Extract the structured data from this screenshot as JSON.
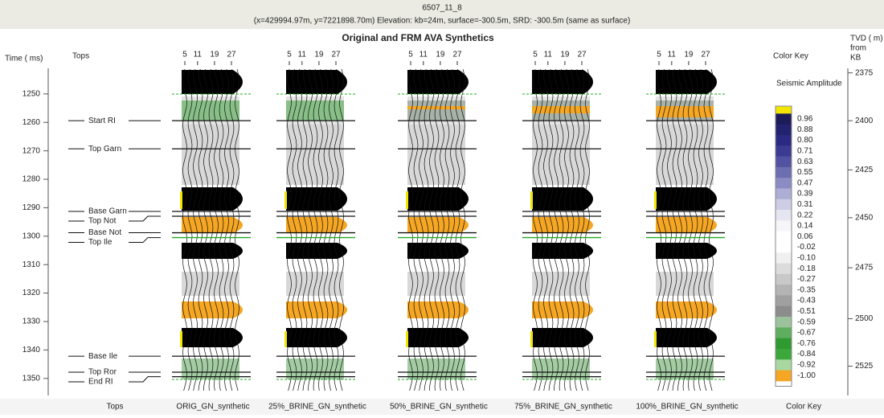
{
  "header": {
    "well": "6507_11_8",
    "location": "(x=429994.97m, y=7221898.70m) Elevation: kb=24m, surface=-300.5m, SRD: -300.5m (same as surface)"
  },
  "title": "Original and FRM AVA Synthetics",
  "time_axis": {
    "label": "Time ( ms)",
    "lim": [
      1241,
      1356
    ],
    "ticks": [
      1250,
      1260,
      1270,
      1280,
      1290,
      1300,
      1310,
      1320,
      1330,
      1340,
      1350
    ]
  },
  "tops": {
    "label": "Tops",
    "footer": "Tops",
    "items": [
      {
        "name": "Start RI",
        "time": 1259.4
      },
      {
        "name": "Top Garn",
        "time": 1269.3
      },
      {
        "name": "Base Garn",
        "time": 1291.3
      },
      {
        "name": "Top Not",
        "time": 1293.0
      },
      {
        "name": "Base Not",
        "time": 1298.8
      },
      {
        "name": "Top Ile",
        "time": 1300.5
      },
      {
        "name": "Base Ile",
        "time": 1342.2
      },
      {
        "name": "Top Ror",
        "time": 1347.8
      },
      {
        "name": "End RI",
        "time": 1349.4
      }
    ]
  },
  "offsets": [
    5,
    11,
    19,
    27
  ],
  "panels": [
    "ORIG_GN_synthetic",
    "25%_BRINE_GN_synthetic",
    "50%_BRINE_GN_synthetic",
    "75%_BRINE_GN_synthetic",
    "100%_BRINE_GN_synthetic"
  ],
  "color_key": {
    "label": "Color Key",
    "footer": "Color Key",
    "title": "Seismic Amplitude",
    "top_color": "#f2e600",
    "labels": [
      "0.96",
      "0.88",
      "0.80",
      "0.71",
      "0.63",
      "0.55",
      "0.47",
      "0.39",
      "0.31",
      "0.22",
      "0.14",
      "0.06",
      "-0.02",
      "-0.10",
      "-0.18",
      "-0.27",
      "-0.35",
      "-0.43",
      "-0.51",
      "-0.59",
      "-0.67",
      "-0.76",
      "-0.84",
      "-0.92",
      "-1.00"
    ],
    "colors": [
      "#1c1c5a",
      "#22226e",
      "#2a2a82",
      "#3b3b92",
      "#5252a2",
      "#6d6db2",
      "#8c8cc4",
      "#adadd5",
      "#cdcde6",
      "#e6e6f2",
      "#f6f6f8",
      "#ffffff",
      "#ffffff",
      "#f0f0f0",
      "#dcdcdc",
      "#c8c8c8",
      "#b4b4b4",
      "#a0a0a0",
      "#8c8c8c",
      "#9cc29c",
      "#5fae5f",
      "#2f9a2f",
      "#3ca83c",
      "#a8d8a0",
      "#f5a623"
    ]
  },
  "tvd_axis": {
    "label": "TVD ( m)",
    "label2": "from",
    "label3": "KB",
    "ticks": [
      {
        "value": 2375,
        "time": 1242.6
      },
      {
        "value": 2400,
        "time": 1259.4
      },
      {
        "value": 2425,
        "time": 1276.7
      },
      {
        "value": 2450,
        "time": 1293.5
      },
      {
        "value": 2475,
        "time": 1311.1
      },
      {
        "value": 2500,
        "time": 1329.0
      },
      {
        "value": 2525,
        "time": 1345.7
      }
    ]
  }
}
